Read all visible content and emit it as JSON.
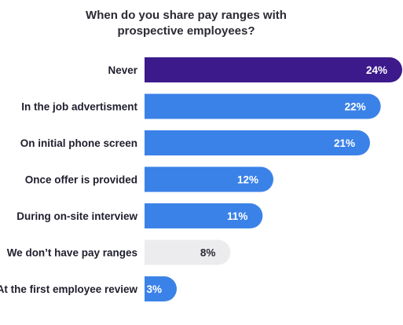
{
  "chart_data": {
    "type": "bar",
    "orientation": "horizontal",
    "title_lines": [
      "When do you share pay ranges with",
      "prospective employees?"
    ],
    "categories": [
      "Never",
      "In the job advertisment",
      "On initial phone screen",
      "Once offer is provided",
      "During on-site interview",
      "We don’t have pay ranges",
      "At the first employee review"
    ],
    "values": [
      24,
      22,
      21,
      12,
      11,
      8,
      3
    ],
    "value_labels": [
      "24%",
      "22%",
      "21%",
      "12%",
      "11%",
      "8%",
      "3%"
    ],
    "bar_colors": [
      "#3d1a8c",
      "#3b82e8",
      "#3b82e8",
      "#3b82e8",
      "#3b82e8",
      "#ececee",
      "#3b82e8"
    ],
    "value_label_colors": [
      "#ffffff",
      "#ffffff",
      "#ffffff",
      "#ffffff",
      "#ffffff",
      "#2b2b33",
      "#ffffff"
    ],
    "xlim": [
      0,
      24
    ],
    "grid": false,
    "legend": false
  }
}
